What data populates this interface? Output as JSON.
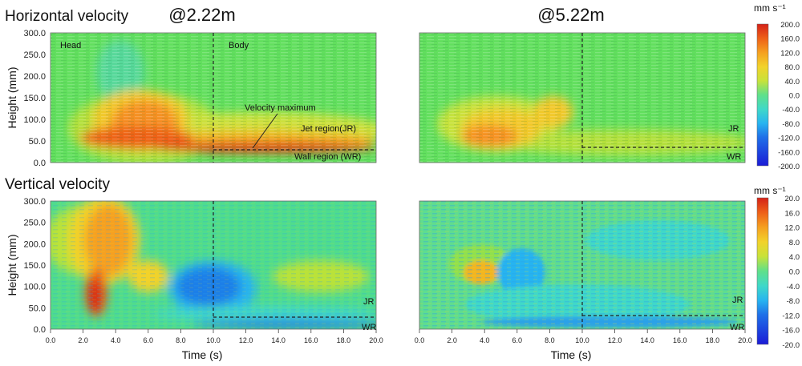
{
  "section_titles": {
    "horizontal": "Horizontal velocity",
    "vertical": "Vertical velocity"
  },
  "location_titles": {
    "left": "@2.22m",
    "right": "@5.22m"
  },
  "axis": {
    "ylabel": "Height (mm)",
    "xlabel": "Time (s)"
  },
  "colorbar_unit": "mm s⁻¹",
  "colorbar_top": {
    "min": -200,
    "max": 200,
    "ticks": [
      "200.0",
      "160.0",
      "120.0",
      "80.0",
      "40.0",
      "0.0",
      "-40.0",
      "-80.0",
      "-120.0",
      "-160.0",
      "-200.0"
    ]
  },
  "colorbar_bottom": {
    "min": -20,
    "max": 20,
    "ticks": [
      "20.0",
      "16.0",
      "12.0",
      "8.0",
      "4.0",
      "0.0",
      "-4.0",
      "-8.0",
      "-12.0",
      "-16.0",
      "-20.0"
    ]
  },
  "colormap": [
    "#1b1bd6",
    "#1f6fe8",
    "#27b4f0",
    "#3fd8c8",
    "#5fe08a",
    "#7fe04a",
    "#c8e23a",
    "#f2d22a",
    "#f5a020",
    "#ee6018",
    "#d42218"
  ],
  "annotations": {
    "head": "Head",
    "body": "Body",
    "velocity_max": "Velocity maximum",
    "jet_region": "Jet region(JR)",
    "wall_region": "Wall region  (WR)",
    "jr": "JR",
    "wr": "WR"
  },
  "chart_data": [
    {
      "type": "heatmap",
      "title": "Horizontal velocity @2.22m",
      "xlabel": "Time (s)",
      "ylabel": "Height (mm)",
      "xlim": [
        0,
        20
      ],
      "ylim": [
        0,
        300
      ],
      "units": "mm s-1",
      "clim": [
        -200,
        200
      ],
      "xticks": [
        "0.0",
        "2.0",
        "4.0",
        "6.0",
        "8.0",
        "10.0",
        "12.0",
        "14.0",
        "16.0",
        "18.0",
        "20.0"
      ],
      "yticks": [
        "300.0",
        "250.0",
        "200.0",
        "150.0",
        "100.0",
        "50.0",
        "0.0"
      ],
      "regions": [
        {
          "label": "Head",
          "t_range": [
            0,
            10
          ]
        },
        {
          "label": "Body",
          "t_range": [
            10,
            20
          ]
        },
        {
          "label": "Jet region(JR)",
          "height_mm": [
            30,
            100
          ]
        },
        {
          "label": "Wall region (WR)",
          "height_mm": [
            0,
            30
          ]
        }
      ],
      "boundary_time_s": 10,
      "velocity_max_height_mm": 30
    },
    {
      "type": "heatmap",
      "title": "Horizontal velocity @5.22m",
      "xlim": [
        0,
        20
      ],
      "ylim": [
        0,
        300
      ],
      "units": "mm s-1",
      "clim": [
        -200,
        200
      ],
      "boundary_time_s": 10,
      "velocity_max_height_mm": 30
    },
    {
      "type": "heatmap",
      "title": "Vertical velocity @2.22m",
      "xlabel": "Time (s)",
      "ylabel": "Height (mm)",
      "xlim": [
        0,
        20
      ],
      "ylim": [
        0,
        300
      ],
      "units": "mm s-1",
      "clim": [
        -20,
        20
      ],
      "xticks": [
        "0.0",
        "2.0",
        "4.0",
        "6.0",
        "8.0",
        "10.0",
        "12.0",
        "14.0",
        "16.0",
        "18.0",
        "20.0"
      ],
      "yticks": [
        "300.0",
        "250.0",
        "200.0",
        "150.0",
        "100.0",
        "50.0",
        "0.0"
      ],
      "boundary_time_s": 10,
      "velocity_max_height_mm": 30
    },
    {
      "type": "heatmap",
      "title": "Vertical velocity @5.22m",
      "xlabel": "Time (s)",
      "xlim": [
        0,
        20
      ],
      "ylim": [
        0,
        300
      ],
      "units": "mm s-1",
      "clim": [
        -20,
        20
      ],
      "xticks": [
        "0.0",
        "2.0",
        "4.0",
        "6.0",
        "8.0",
        "10.0",
        "12.0",
        "14.0",
        "16.0",
        "18.0",
        "20.0"
      ],
      "boundary_time_s": 10,
      "velocity_max_height_mm": 30
    }
  ]
}
